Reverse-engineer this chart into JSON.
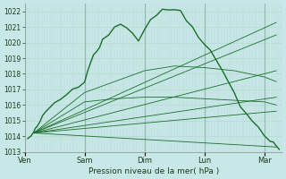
{
  "title": "",
  "xlabel": "Pression niveau de la mer( hPa )",
  "ylabel": "",
  "bg_color": "#c8e8e8",
  "grid_color": "#b0d8d0",
  "line_color": "#1a6e2a",
  "ylim": [
    1013,
    1022.5
  ],
  "yticks": [
    1013,
    1014,
    1015,
    1016,
    1017,
    1018,
    1019,
    1020,
    1021,
    1022
  ],
  "days": [
    "Ven",
    "Sam",
    "Dim",
    "Lun",
    "Mar"
  ],
  "day_positions": [
    0,
    1,
    2,
    3,
    4
  ],
  "xlim": [
    0,
    4.3
  ],
  "forecast_lines": [
    {
      "x": [
        0.15,
        4.2
      ],
      "y": [
        1014.2,
        1021.3
      ]
    },
    {
      "x": [
        0.15,
        4.2
      ],
      "y": [
        1014.2,
        1020.5
      ]
    },
    {
      "x": [
        0.15,
        4.2
      ],
      "y": [
        1014.2,
        1018.2
      ]
    },
    {
      "x": [
        0.15,
        4.2
      ],
      "y": [
        1014.2,
        1016.5
      ]
    },
    {
      "x": [
        0.15,
        4.2
      ],
      "y": [
        1014.2,
        1015.6
      ]
    },
    {
      "x": [
        0.15,
        4.2
      ],
      "y": [
        1014.2,
        1013.3
      ]
    }
  ],
  "main_line_x": [
    0.05,
    0.1,
    0.15,
    0.18,
    0.2,
    0.25,
    0.3,
    0.35,
    0.4,
    0.5,
    0.6,
    0.7,
    0.8,
    0.9,
    1.0,
    1.05,
    1.1,
    1.15,
    1.2,
    1.25,
    1.3,
    1.4,
    1.5,
    1.6,
    1.7,
    1.8,
    1.9,
    2.0,
    2.05,
    2.1,
    2.2,
    2.3,
    2.4,
    2.5,
    2.6,
    2.7,
    2.8,
    2.9,
    3.0,
    3.1,
    3.2,
    3.3,
    3.4,
    3.5,
    3.6,
    3.7,
    3.8,
    3.9,
    4.0,
    4.1,
    4.15,
    4.2,
    4.25
  ],
  "main_line_y": [
    1013.8,
    1014.0,
    1014.2,
    1014.4,
    1014.6,
    1014.9,
    1015.2,
    1015.5,
    1015.8,
    1016.1,
    1016.4,
    1016.7,
    1017.0,
    1017.3,
    1017.6,
    1018.2,
    1018.8,
    1019.2,
    1019.5,
    1019.8,
    1020.1,
    1020.5,
    1021.0,
    1021.3,
    1021.0,
    1020.6,
    1020.2,
    1020.8,
    1021.2,
    1021.5,
    1021.8,
    1022.0,
    1022.1,
    1022.2,
    1022.0,
    1021.5,
    1021.0,
    1020.5,
    1020.0,
    1019.5,
    1018.8,
    1018.2,
    1017.5,
    1016.8,
    1016.0,
    1015.5,
    1015.0,
    1014.5,
    1014.0,
    1013.8,
    1013.6,
    1013.4,
    1013.2
  ],
  "extra_lines": [
    {
      "x": [
        0.15,
        1.0,
        1.5,
        2.0,
        2.5,
        3.0,
        3.5,
        4.0,
        4.2
      ],
      "y": [
        1014.2,
        1016.2,
        1016.4,
        1016.5,
        1016.5,
        1016.4,
        1016.3,
        1016.2,
        1016.0
      ]
    },
    {
      "x": [
        0.15,
        1.0,
        1.5,
        2.0,
        2.5,
        3.0,
        3.5,
        4.0,
        4.2
      ],
      "y": [
        1014.2,
        1016.8,
        1017.5,
        1018.2,
        1018.5,
        1018.4,
        1018.2,
        1017.8,
        1017.5
      ]
    }
  ]
}
